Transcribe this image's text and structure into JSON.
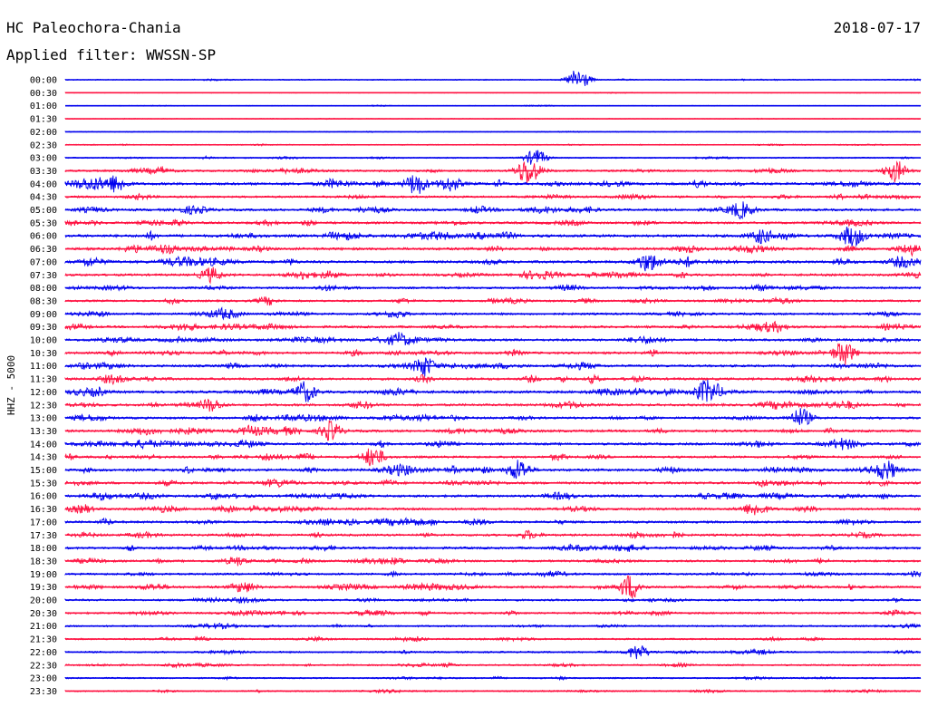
{
  "header": {
    "station": "HC Paleochora-Chania",
    "date": "2018-07-17",
    "filter": "Applied filter: WWSSN-SP"
  },
  "chart_data": {
    "type": "line",
    "ylabel": "HHZ - 5000",
    "row_times": [
      "00:00",
      "00:30",
      "01:00",
      "01:30",
      "02:00",
      "02:30",
      "03:00",
      "03:30",
      "04:00",
      "04:30",
      "05:00",
      "05:30",
      "06:00",
      "06:30",
      "07:00",
      "07:30",
      "08:00",
      "08:30",
      "09:00",
      "09:30",
      "10:00",
      "10:30",
      "11:00",
      "11:30",
      "12:00",
      "12:30",
      "13:00",
      "13:30",
      "14:00",
      "14:30",
      "15:00",
      "15:30",
      "16:00",
      "16:30",
      "17:00",
      "17:30",
      "18:00",
      "18:30",
      "19:00",
      "19:30",
      "20:00",
      "20:30",
      "21:00",
      "21:30",
      "22:00",
      "22:30",
      "23:00",
      "23:30"
    ],
    "row_activity": [
      0.15,
      0.06,
      0.08,
      0.05,
      0.1,
      0.2,
      0.25,
      0.55,
      0.85,
      0.6,
      0.7,
      0.7,
      0.9,
      0.8,
      0.85,
      0.7,
      0.6,
      0.6,
      0.65,
      0.7,
      0.75,
      0.7,
      0.7,
      0.75,
      0.8,
      0.75,
      0.7,
      0.75,
      0.75,
      0.7,
      0.8,
      0.75,
      0.75,
      0.7,
      0.7,
      0.7,
      0.7,
      0.65,
      0.6,
      0.7,
      0.55,
      0.55,
      0.45,
      0.45,
      0.45,
      0.4,
      0.35,
      0.35
    ],
    "events": [
      {
        "row": 0,
        "x": 0.6,
        "amp": 2.8
      },
      {
        "row": 6,
        "x": 0.55,
        "amp": 2.0
      },
      {
        "row": 7,
        "x": 0.54,
        "amp": 3.0
      },
      {
        "row": 7,
        "x": 0.97,
        "amp": 2.6
      },
      {
        "row": 8,
        "x": 0.41,
        "amp": 2.6
      },
      {
        "row": 8,
        "x": 0.45,
        "amp": 1.5
      },
      {
        "row": 8,
        "x": 0.06,
        "amp": 1.8
      },
      {
        "row": 10,
        "x": 0.79,
        "amp": 1.5
      },
      {
        "row": 12,
        "x": 0.92,
        "amp": 2.2
      },
      {
        "row": 14,
        "x": 0.68,
        "amp": 2.0
      },
      {
        "row": 15,
        "x": 0.17,
        "amp": 1.8
      },
      {
        "row": 21,
        "x": 0.91,
        "amp": 3.0
      },
      {
        "row": 22,
        "x": 0.42,
        "amp": 2.0
      },
      {
        "row": 24,
        "x": 0.28,
        "amp": 2.5
      },
      {
        "row": 24,
        "x": 0.75,
        "amp": 2.2
      },
      {
        "row": 25,
        "x": 0.17,
        "amp": 1.6
      },
      {
        "row": 26,
        "x": 0.86,
        "amp": 2.3
      },
      {
        "row": 27,
        "x": 0.31,
        "amp": 2.4
      },
      {
        "row": 29,
        "x": 0.36,
        "amp": 2.5
      },
      {
        "row": 30,
        "x": 0.53,
        "amp": 2.6
      },
      {
        "row": 30,
        "x": 0.96,
        "amp": 2.0
      },
      {
        "row": 39,
        "x": 0.66,
        "amp": 3.0
      },
      {
        "row": 44,
        "x": 0.67,
        "amp": 1.6
      }
    ],
    "colors": {
      "even": "#0000ee",
      "odd": "#ff1040"
    }
  }
}
